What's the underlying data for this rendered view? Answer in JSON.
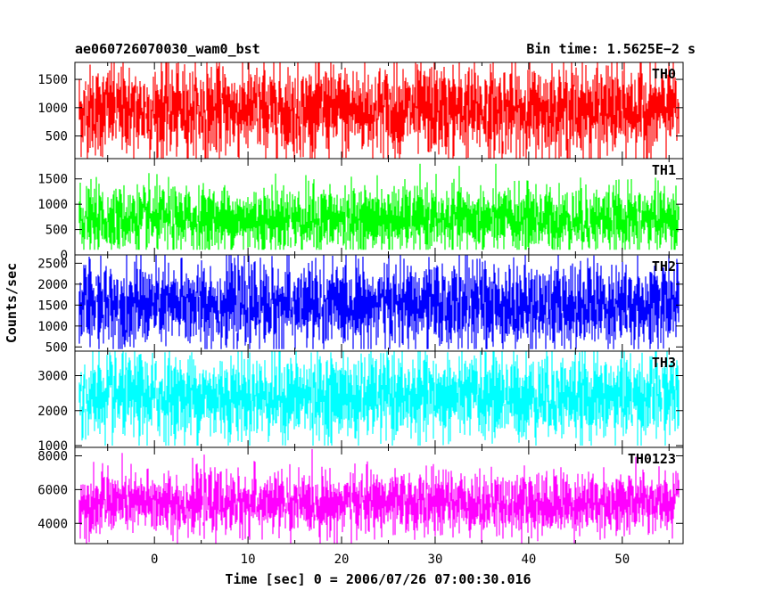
{
  "header": {
    "title": "ae060726070030_wam0_bst",
    "bin_time": "Bin time: 1.5625E−2 s"
  },
  "chart_data": {
    "type": "line",
    "xlabel": "Time [sec] 0 = 2006/07/26 07:00:30.016",
    "ylabel": "Counts/sec",
    "xlim": [
      -8.5,
      56.5
    ],
    "x_ticks": [
      0,
      10,
      20,
      30,
      40,
      50
    ],
    "data_x_range": [
      -8,
      56
    ],
    "grid": false,
    "panels": [
      {
        "name": "TH0",
        "color": "#ff0000",
        "ylim": [
          100,
          1800
        ],
        "y_ticks": [
          500,
          1000,
          1500
        ],
        "band": [
          80,
          1800
        ],
        "mean": 950,
        "spread": 400
      },
      {
        "name": "TH1",
        "color": "#00ff00",
        "ylim": [
          0,
          1900
        ],
        "y_ticks": [
          0,
          500,
          1000,
          1500
        ],
        "band": [
          100,
          1800
        ],
        "mean": 700,
        "spread": 320
      },
      {
        "name": "TH2",
        "color": "#0000ff",
        "ylim": [
          400,
          2700
        ],
        "y_ticks": [
          500,
          1000,
          1500,
          2000,
          2500
        ],
        "band": [
          450,
          2700
        ],
        "mean": 1500,
        "spread": 500
      },
      {
        "name": "TH3",
        "color": "#00ffff",
        "ylim": [
          950,
          3700
        ],
        "y_ticks": [
          1000,
          2000,
          3000
        ],
        "band": [
          1000,
          3700
        ],
        "mean": 2400,
        "spread": 600
      },
      {
        "name": "TH0123",
        "color": "#ff00ff",
        "ylim": [
          2800,
          8500
        ],
        "y_ticks": [
          4000,
          6000,
          8000
        ],
        "band": [
          2800,
          8400
        ],
        "mean": 5200,
        "spread": 900
      }
    ]
  }
}
